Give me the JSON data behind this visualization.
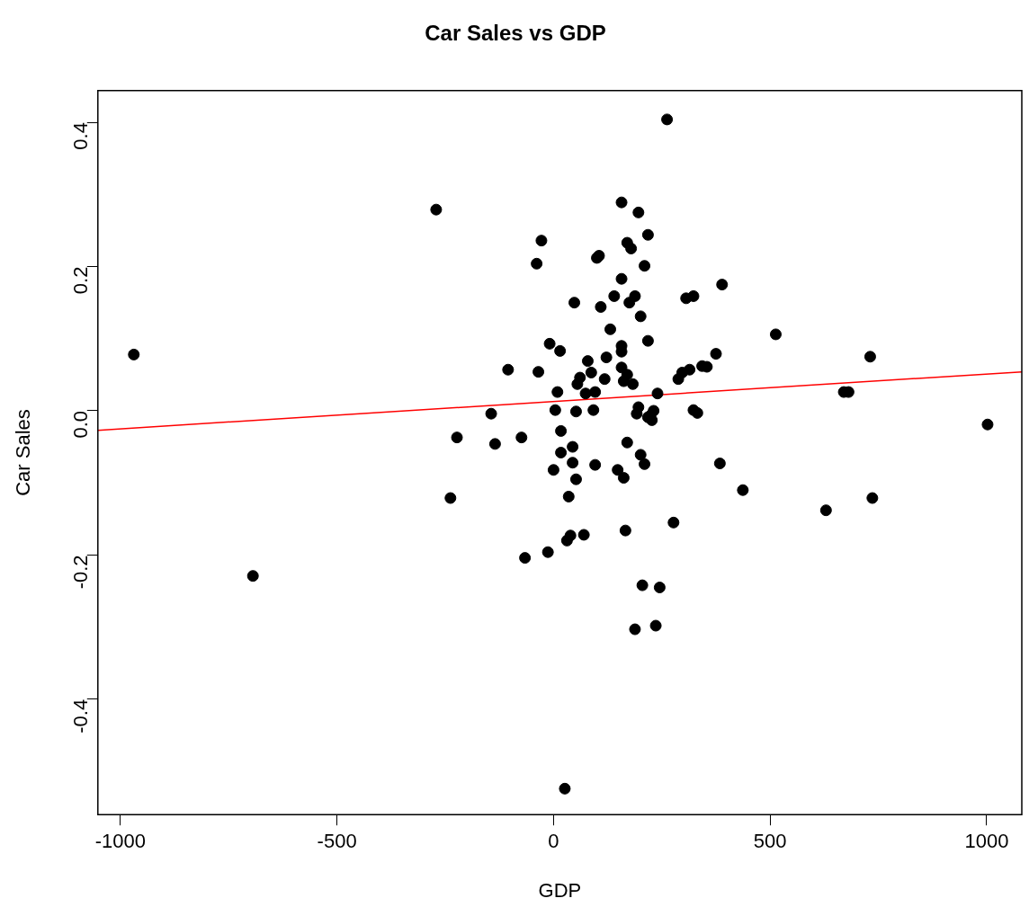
{
  "chart_data": {
    "type": "scatter",
    "title": "Car Sales vs GDP",
    "xlabel": "GDP",
    "ylabel": "Car Sales",
    "xlim": [
      -1052,
      1081
    ],
    "ylim": [
      -0.56,
      0.444
    ],
    "xticks": [
      -1000,
      -500,
      0,
      500,
      1000
    ],
    "yticks": [
      -0.4,
      -0.2,
      {
        "value": 0,
        "label": "0.0"
      },
      0.2,
      0.4
    ],
    "grid": false,
    "legend": false,
    "series": [
      {
        "color": "#000000",
        "marker": "circle",
        "x": [
          -969,
          -694,
          -271,
          -238,
          -223,
          -144,
          -135,
          -105,
          -74,
          -66,
          -39,
          -28,
          -35,
          -13,
          -9,
          0,
          4,
          9,
          15,
          17,
          17,
          26,
          31,
          39,
          35,
          44,
          44,
          48,
          55,
          52,
          52,
          61,
          70,
          74,
          79,
          87,
          96,
          92,
          96,
          100,
          105,
          109,
          118,
          122,
          131,
          140,
          148,
          157,
          157,
          157,
          157,
          157,
          162,
          162,
          166,
          170,
          170,
          170,
          179,
          175,
          183,
          188,
          188,
          192,
          196,
          201,
          196,
          201,
          205,
          210,
          210,
          218,
          218,
          218,
          223,
          227,
          231,
          236,
          240,
          245,
          262,
          277,
          288,
          297,
          306,
          314,
          323,
          323,
          332,
          343,
          354,
          375,
          384,
          389,
          437,
          513,
          629,
          670,
          681,
          731,
          736,
          1002
        ],
        "values": [
          0.078,
          -0.229,
          0.279,
          -0.121,
          -0.037,
          -0.004,
          -0.046,
          0.057,
          -0.037,
          -0.204,
          0.204,
          0.236,
          0.054,
          -0.196,
          0.093,
          -0.082,
          0.001,
          0.026,
          0.083,
          -0.028,
          -0.058,
          -0.524,
          -0.18,
          -0.173,
          -0.119,
          -0.05,
          -0.072,
          0.15,
          0.037,
          -0.001,
          -0.095,
          0.046,
          -0.172,
          0.024,
          0.069,
          0.053,
          0.026,
          0.001,
          -0.075,
          0.212,
          0.215,
          0.144,
          0.044,
          0.074,
          0.113,
          0.159,
          -0.082,
          0.289,
          0.183,
          0.09,
          0.082,
          0.06,
          -0.093,
          0.041,
          -0.166,
          0.05,
          -0.044,
          0.233,
          0.225,
          0.15,
          0.037,
          0.159,
          -0.303,
          -0.004,
          0.275,
          0.131,
          0.005,
          -0.061,
          -0.242,
          -0.074,
          0.201,
          0.244,
          0.097,
          -0.009,
          -0.007,
          -0.013,
          0,
          -0.298,
          0.024,
          -0.245,
          0.404,
          -0.155,
          0.044,
          0.053,
          0.156,
          0.057,
          0.001,
          0.159,
          -0.003,
          0.062,
          0.061,
          0.079,
          -0.073,
          0.175,
          -0.11,
          0.106,
          -0.138,
          0.026,
          0.026,
          0.075,
          -0.121,
          -0.019
        ]
      },
      {
        "type": "line",
        "marker": "none",
        "color": "#ff0000",
        "x": [
          -1052,
          1081
        ],
        "values": [
          -0.027,
          0.054
        ]
      }
    ]
  }
}
